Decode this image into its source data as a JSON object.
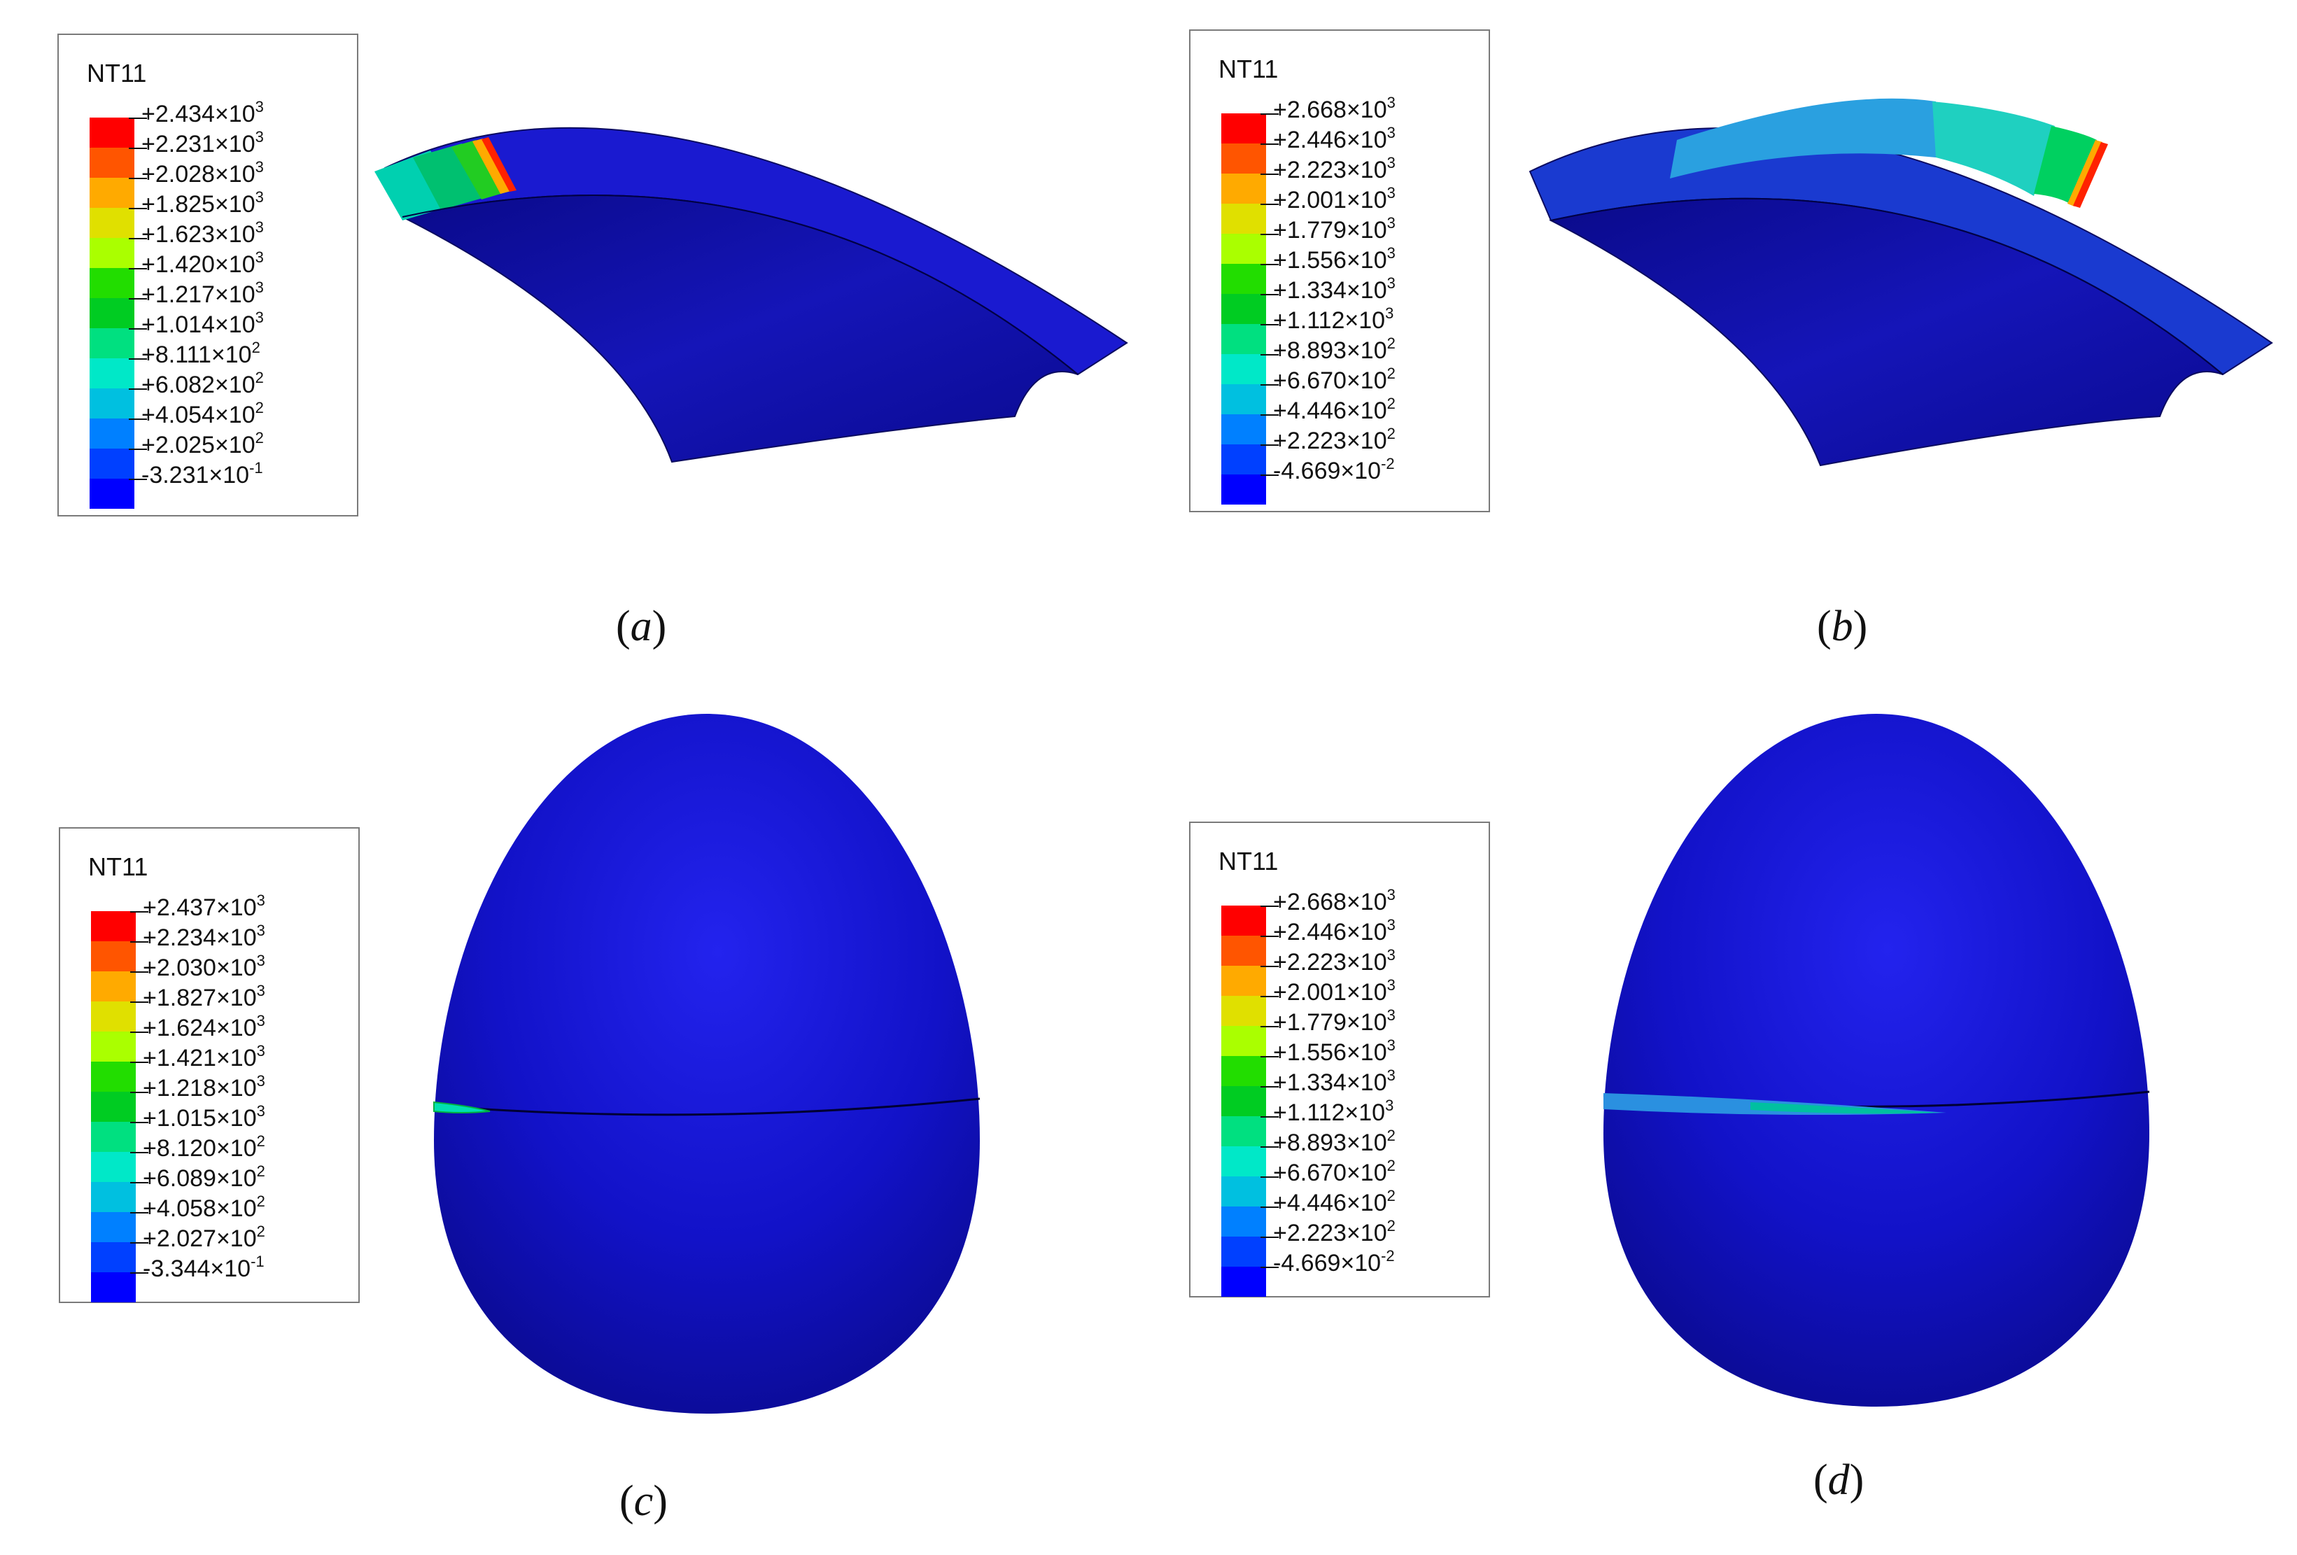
{
  "panels": [
    {
      "id": "a",
      "legend": {
        "title": "NT11",
        "labels": [
          {
            "mantissa": "+2.434",
            "exp": "3"
          },
          {
            "mantissa": "+2.231",
            "exp": "3"
          },
          {
            "mantissa": "+2.028",
            "exp": "3"
          },
          {
            "mantissa": "+1.825",
            "exp": "3"
          },
          {
            "mantissa": "+1.623",
            "exp": "3"
          },
          {
            "mantissa": "+1.420",
            "exp": "3"
          },
          {
            "mantissa": "+1.217",
            "exp": "3"
          },
          {
            "mantissa": "+1.014",
            "exp": "3"
          },
          {
            "mantissa": "+8.111",
            "exp": "2"
          },
          {
            "mantissa": "+6.082",
            "exp": "2"
          },
          {
            "mantissa": "+4.054",
            "exp": "2"
          },
          {
            "mantissa": "+2.025",
            "exp": "2"
          },
          {
            "mantissa": "-3.231",
            "exp": "-1"
          }
        ]
      },
      "caption_letter": "a",
      "model": "shell-segment"
    },
    {
      "id": "b",
      "legend": {
        "title": "NT11",
        "labels": [
          {
            "mantissa": "+2.668",
            "exp": "3"
          },
          {
            "mantissa": "+2.446",
            "exp": "3"
          },
          {
            "mantissa": "+2.223",
            "exp": "3"
          },
          {
            "mantissa": "+2.001",
            "exp": "3"
          },
          {
            "mantissa": "+1.779",
            "exp": "3"
          },
          {
            "mantissa": "+1.556",
            "exp": "3"
          },
          {
            "mantissa": "+1.334",
            "exp": "3"
          },
          {
            "mantissa": "+1.112",
            "exp": "3"
          },
          {
            "mantissa": "+8.893",
            "exp": "2"
          },
          {
            "mantissa": "+6.670",
            "exp": "2"
          },
          {
            "mantissa": "+4.446",
            "exp": "2"
          },
          {
            "mantissa": "+2.223",
            "exp": "2"
          },
          {
            "mantissa": "-4.669",
            "exp": "-2"
          }
        ]
      },
      "caption_letter": "b",
      "model": "shell-segment"
    },
    {
      "id": "c",
      "legend": {
        "title": "NT11",
        "labels": [
          {
            "mantissa": "+2.437",
            "exp": "3"
          },
          {
            "mantissa": "+2.234",
            "exp": "3"
          },
          {
            "mantissa": "+2.030",
            "exp": "3"
          },
          {
            "mantissa": "+1.827",
            "exp": "3"
          },
          {
            "mantissa": "+1.624",
            "exp": "3"
          },
          {
            "mantissa": "+1.421",
            "exp": "3"
          },
          {
            "mantissa": "+1.218",
            "exp": "3"
          },
          {
            "mantissa": "+1.015",
            "exp": "3"
          },
          {
            "mantissa": "+8.120",
            "exp": "2"
          },
          {
            "mantissa": "+6.089",
            "exp": "2"
          },
          {
            "mantissa": "+4.058",
            "exp": "2"
          },
          {
            "mantissa": "+2.027",
            "exp": "2"
          },
          {
            "mantissa": "-3.344",
            "exp": "-1"
          }
        ]
      },
      "caption_letter": "c",
      "model": "egg-shell"
    },
    {
      "id": "d",
      "legend": {
        "title": "NT11",
        "labels": [
          {
            "mantissa": "+2.668",
            "exp": "3"
          },
          {
            "mantissa": "+2.446",
            "exp": "3"
          },
          {
            "mantissa": "+2.223",
            "exp": "3"
          },
          {
            "mantissa": "+2.001",
            "exp": "3"
          },
          {
            "mantissa": "+1.779",
            "exp": "3"
          },
          {
            "mantissa": "+1.556",
            "exp": "3"
          },
          {
            "mantissa": "+1.334",
            "exp": "3"
          },
          {
            "mantissa": "+1.112",
            "exp": "3"
          },
          {
            "mantissa": "+8.893",
            "exp": "2"
          },
          {
            "mantissa": "+6.670",
            "exp": "2"
          },
          {
            "mantissa": "+4.446",
            "exp": "2"
          },
          {
            "mantissa": "+2.223",
            "exp": "2"
          },
          {
            "mantissa": "-4.669",
            "exp": "-2"
          }
        ]
      },
      "caption_letter": "d",
      "model": "egg-shell"
    }
  ],
  "contour_colors": [
    "#ff0000",
    "#ff5500",
    "#ffaa00",
    "#e0e000",
    "#aaff00",
    "#22dd00",
    "#00cc22",
    "#00e080",
    "#00e8c8",
    "#00c0e0",
    "#0080ff",
    "#0040ff",
    "#0000ff"
  ]
}
